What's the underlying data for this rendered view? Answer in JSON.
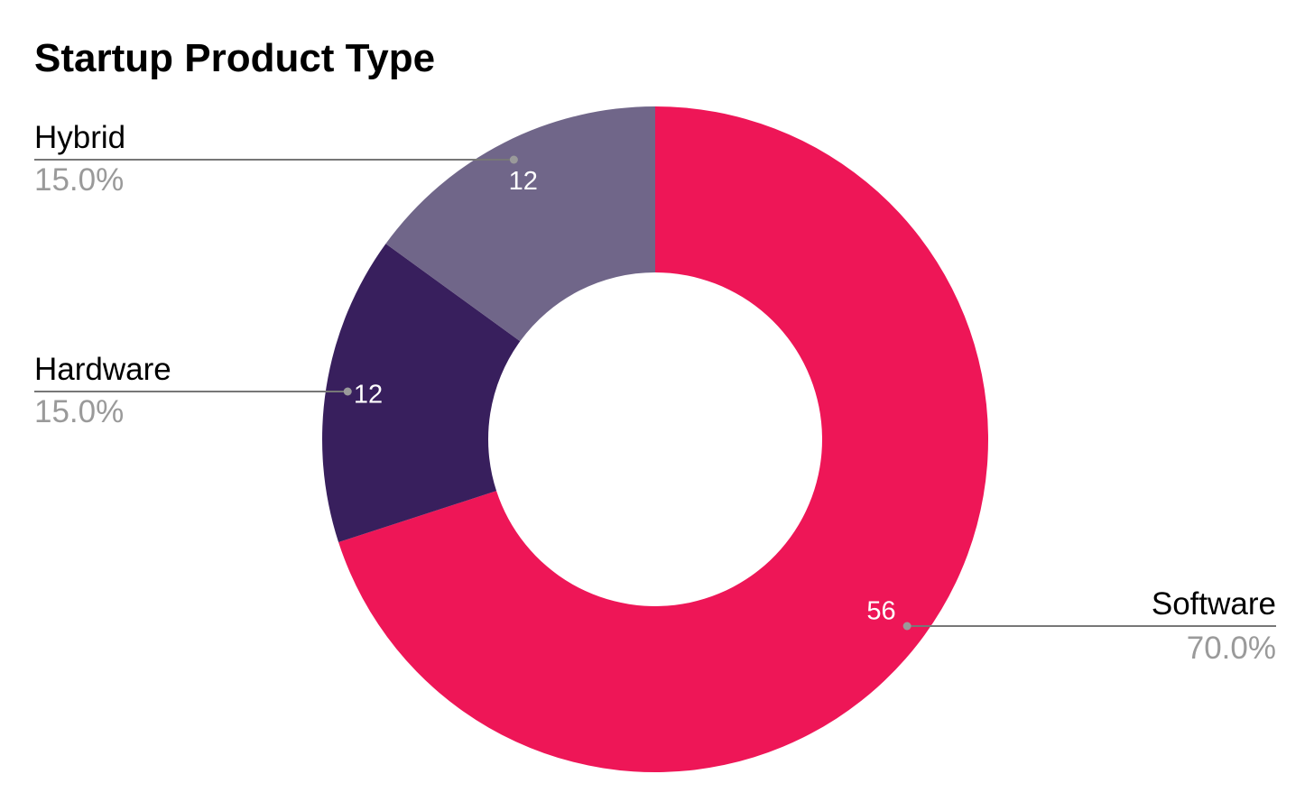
{
  "chart_data": {
    "type": "pie",
    "title": "Startup Product Type",
    "donut": true,
    "slices": [
      {
        "label": "Software",
        "value": 56,
        "percent_label": "70.0%",
        "color": "#EE1657",
        "value_label_color": "#FFFFFF"
      },
      {
        "label": "Hardware",
        "value": 12,
        "percent_label": "15.0%",
        "color": "#381F5D",
        "value_label_color": "#FFFFFF"
      },
      {
        "label": "Hybrid",
        "value": 12,
        "percent_label": "15.0%",
        "color": "#706689",
        "value_label_color": "#FFFFFF"
      }
    ],
    "legend": "none",
    "callout_label_color": "#000000",
    "callout_percent_color": "#9A9A9A",
    "leader_line_color": "#777777"
  }
}
